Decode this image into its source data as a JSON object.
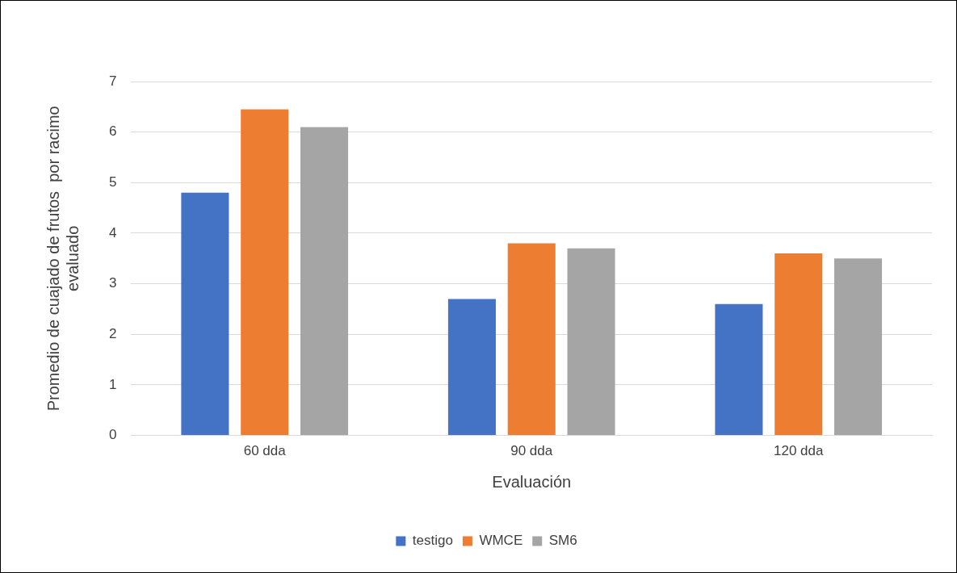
{
  "chart_data": {
    "type": "bar",
    "xlabel": "Evaluación",
    "ylabel": "Promedio de cuajado de frutos  por racimo\nevaluado",
    "categories": [
      "60 dda",
      "90 dda",
      "120 dda"
    ],
    "series": [
      {
        "name": "testigo",
        "color": "#4472c4",
        "values": [
          4.8,
          2.7,
          2.6
        ]
      },
      {
        "name": "WMCE",
        "color": "#ed7d31",
        "values": [
          6.45,
          3.8,
          3.6
        ]
      },
      {
        "name": "SM6",
        "color": "#a5a5a5",
        "values": [
          6.1,
          3.7,
          3.5
        ]
      }
    ],
    "ylim": [
      0,
      7
    ],
    "yticks": [
      0,
      1,
      2,
      3,
      4,
      5,
      6,
      7
    ],
    "grid": "y",
    "legend": "bottom"
  }
}
